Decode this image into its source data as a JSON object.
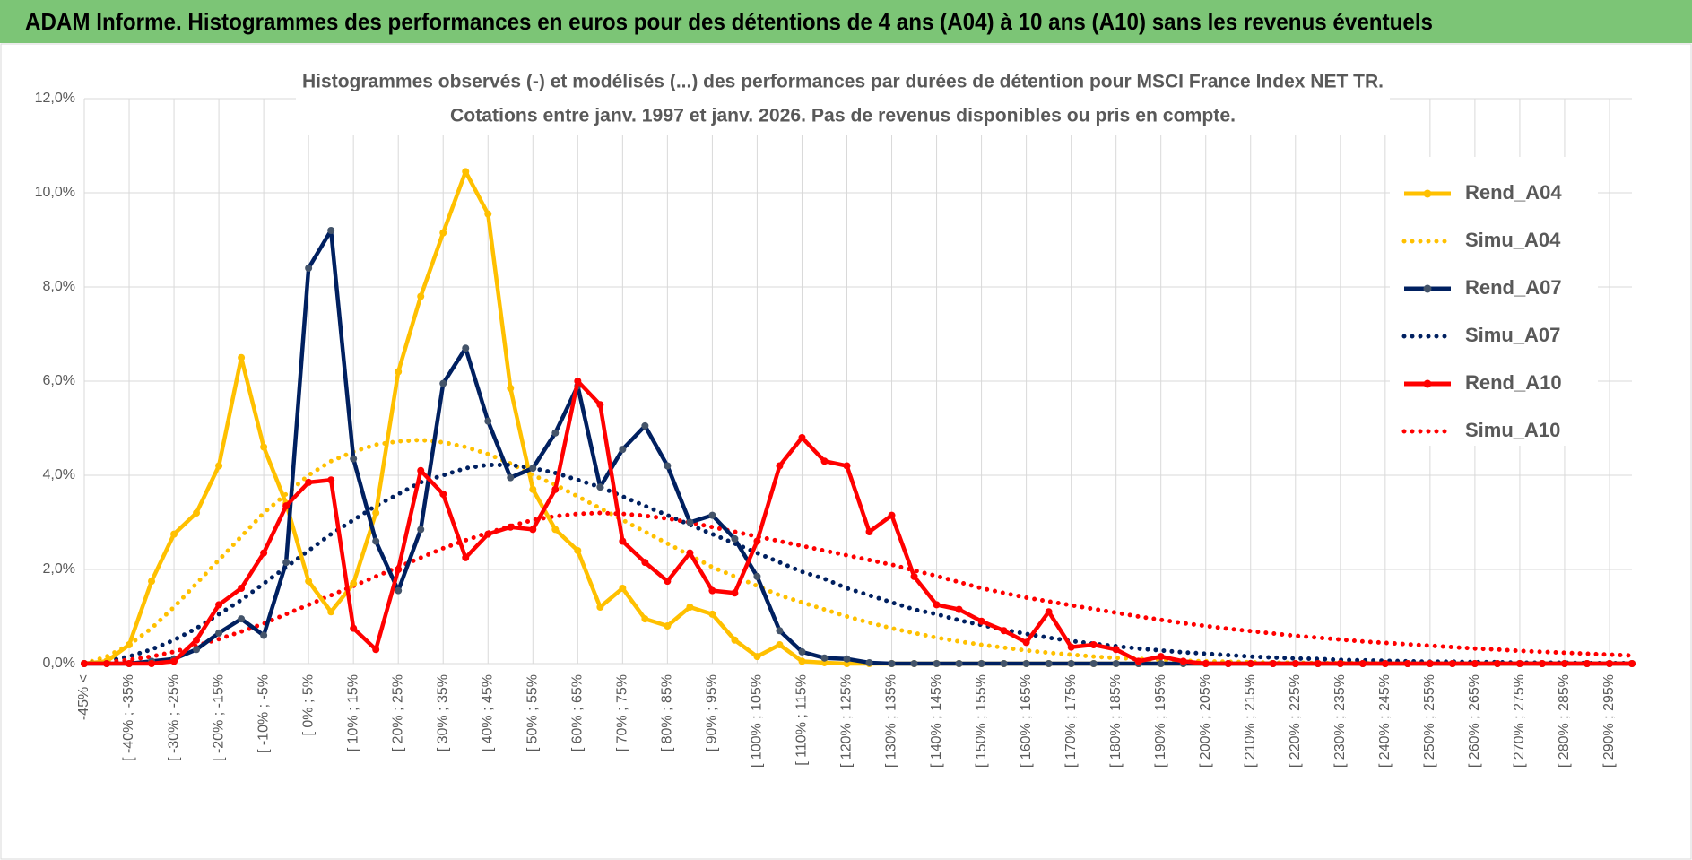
{
  "chart_data": {
    "type": "line",
    "title": "ADAM Informe. Histogrammes des performances en euros pour des détentions de 4 ans (A04) à 10 ans (A10) sans les revenus éventuels",
    "subtitle": [
      "Histogrammes observés (-) et modélisés (...) des performances par durées de détention pour MSCI France Index NET TR.",
      "Cotations entre janv. 1997 et janv. 2026. Pas de revenus disponibles ou pris en compte."
    ],
    "categories": [
      "-45% <",
      null,
      "[ -40% ; -35%",
      null,
      "[ -30% ; -25%",
      null,
      "[ -20% ; -15%",
      null,
      "[ -10% ; -5%",
      null,
      "[ 0% ; 5%",
      null,
      "[ 10% ; 15%",
      null,
      "[ 20% ; 25%",
      null,
      "[ 30% ; 35%",
      null,
      "[ 40% ; 45%",
      null,
      "[ 50% ; 55%",
      null,
      "[ 60% ; 65%",
      null,
      "[ 70% ; 75%",
      null,
      "[ 80% ; 85%",
      null,
      "[ 90% ; 95%",
      null,
      "[ 100% ; 105%",
      null,
      "[ 110% ; 115%",
      null,
      "[ 120% ; 125%",
      null,
      "[ 130% ; 135%",
      null,
      "[ 140% ; 145%",
      null,
      "[ 150% ; 155%",
      null,
      "[ 160% ; 165%",
      null,
      "[ 170% ; 175%",
      null,
      "[ 180% ; 185%",
      null,
      "[ 190% ; 195%",
      null,
      "[ 200% ; 205%",
      null,
      "[ 210% ; 215%",
      null,
      "[ 220% ; 225%",
      null,
      "[ 230% ; 235%",
      null,
      "[ 240% ; 245%",
      null,
      "[ 250% ; 255%",
      null,
      "[ 260% ; 265%",
      null,
      "[ 270% ; 275%",
      null,
      "[ 280% ; 285%",
      null,
      "[ 290% ; 295%",
      null
    ],
    "series": [
      {
        "name": "Rend_A04",
        "color": "#FFC000",
        "style": "solid",
        "markers": true,
        "values": [
          0,
          0.05,
          0.4,
          1.75,
          2.75,
          3.2,
          4.2,
          6.5,
          4.6,
          3.4,
          1.75,
          1.1,
          1.7,
          3.2,
          6.2,
          7.8,
          9.15,
          10.45,
          9.55,
          5.85,
          3.7,
          2.85,
          2.4,
          1.2,
          1.6,
          0.95,
          0.8,
          1.2,
          1.05,
          0.5,
          0.15,
          0.4,
          0.05,
          0.02,
          0,
          0,
          0,
          0,
          0,
          0,
          0,
          0,
          0,
          0,
          0,
          0,
          0,
          0,
          0,
          0,
          0,
          0,
          0,
          0,
          0,
          0,
          0,
          0,
          0,
          0,
          0,
          0,
          0,
          0,
          0,
          0,
          0,
          0,
          0,
          0
        ]
      },
      {
        "name": "Simu_A04",
        "color": "#FFC000",
        "style": "dotted",
        "markers": false,
        "values": [
          0,
          0.15,
          0.4,
          0.75,
          1.2,
          1.7,
          2.2,
          2.7,
          3.2,
          3.6,
          4.0,
          4.3,
          4.5,
          4.65,
          4.72,
          4.75,
          4.7,
          4.6,
          4.45,
          4.25,
          4.0,
          3.8,
          3.55,
          3.3,
          3.05,
          2.8,
          2.55,
          2.3,
          2.05,
          1.85,
          1.65,
          1.45,
          1.3,
          1.15,
          1.0,
          0.87,
          0.75,
          0.65,
          0.55,
          0.47,
          0.4,
          0.34,
          0.28,
          0.23,
          0.19,
          0.15,
          0.12,
          0.1,
          0.08,
          0.06,
          0.05,
          0.04,
          0.03,
          0.02,
          0.02,
          0.01,
          0.01,
          0.01,
          0,
          0,
          0,
          0,
          0,
          0,
          0,
          0,
          0,
          0,
          0,
          0
        ]
      },
      {
        "name": "Rend_A07",
        "color": "#002060",
        "style": "solid",
        "markers": true,
        "values": [
          0,
          0,
          0,
          0.05,
          0.1,
          0.3,
          0.65,
          0.95,
          0.6,
          2.15,
          8.4,
          9.2,
          4.35,
          2.6,
          1.55,
          2.85,
          5.95,
          6.7,
          5.15,
          3.95,
          4.15,
          4.9,
          5.9,
          3.75,
          4.55,
          5.05,
          4.2,
          3.0,
          3.15,
          2.65,
          1.85,
          0.7,
          0.25,
          0.12,
          0.1,
          0.02,
          0,
          0,
          0,
          0,
          0,
          0,
          0,
          0,
          0,
          0,
          0,
          0,
          0,
          0,
          0,
          0,
          0,
          0,
          0,
          0,
          0,
          0,
          0,
          0,
          0,
          0,
          0,
          0,
          0,
          0,
          0,
          0,
          0,
          0
        ]
      },
      {
        "name": "Simu_A07",
        "color": "#002060",
        "style": "dotted",
        "markers": false,
        "values": [
          0,
          0.05,
          0.15,
          0.3,
          0.5,
          0.75,
          1.05,
          1.35,
          1.7,
          2.05,
          2.4,
          2.75,
          3.05,
          3.35,
          3.6,
          3.85,
          4.0,
          4.15,
          4.22,
          4.22,
          4.15,
          4.05,
          3.9,
          3.75,
          3.55,
          3.35,
          3.15,
          2.95,
          2.75,
          2.55,
          2.35,
          2.15,
          1.95,
          1.8,
          1.6,
          1.45,
          1.3,
          1.15,
          1.05,
          0.92,
          0.82,
          0.72,
          0.63,
          0.55,
          0.48,
          0.42,
          0.37,
          0.32,
          0.28,
          0.24,
          0.21,
          0.18,
          0.15,
          0.13,
          0.11,
          0.1,
          0.08,
          0.07,
          0.06,
          0.05,
          0.04,
          0.04,
          0.03,
          0.03,
          0.02,
          0.02,
          0.02,
          0.01,
          0.01,
          0.01
        ]
      },
      {
        "name": "Rend_A10",
        "color": "#FF0000",
        "style": "solid",
        "markers": true,
        "values": [
          0,
          0,
          0,
          0,
          0.05,
          0.5,
          1.25,
          1.6,
          2.35,
          3.35,
          3.85,
          3.9,
          0.75,
          0.3,
          2.0,
          4.1,
          3.6,
          2.25,
          2.75,
          2.9,
          2.85,
          3.7,
          6.0,
          5.5,
          2.6,
          2.15,
          1.75,
          2.35,
          1.55,
          1.5,
          2.6,
          4.2,
          4.8,
          4.3,
          4.2,
          2.8,
          3.15,
          1.85,
          1.25,
          1.15,
          0.9,
          0.7,
          0.45,
          1.1,
          0.35,
          0.4,
          0.3,
          0.05,
          0.15,
          0.05,
          0,
          0,
          0,
          0,
          0,
          0,
          0,
          0,
          0,
          0,
          0,
          0,
          0,
          0,
          0,
          0,
          0,
          0,
          0,
          0
        ]
      },
      {
        "name": "Simu_A10",
        "color": "#FF0000",
        "style": "dotted",
        "markers": false,
        "values": [
          0,
          0.03,
          0.08,
          0.15,
          0.25,
          0.38,
          0.52,
          0.68,
          0.85,
          1.05,
          1.25,
          1.45,
          1.65,
          1.85,
          2.05,
          2.25,
          2.45,
          2.62,
          2.78,
          2.92,
          3.05,
          3.13,
          3.18,
          3.2,
          3.18,
          3.14,
          3.08,
          3.0,
          2.9,
          2.8,
          2.7,
          2.6,
          2.5,
          2.4,
          2.3,
          2.2,
          2.1,
          1.98,
          1.86,
          1.73,
          1.6,
          1.5,
          1.4,
          1.32,
          1.24,
          1.16,
          1.08,
          1.0,
          0.93,
          0.86,
          0.8,
          0.74,
          0.69,
          0.64,
          0.59,
          0.55,
          0.51,
          0.47,
          0.44,
          0.41,
          0.38,
          0.35,
          0.32,
          0.3,
          0.27,
          0.25,
          0.23,
          0.21,
          0.19,
          0.17
        ]
      }
    ],
    "ylim": [
      0,
      12
    ],
    "yticks": [
      {
        "value": 0,
        "label": "0,0%"
      },
      {
        "value": 2,
        "label": "2,0%"
      },
      {
        "value": 4,
        "label": "4,0%"
      },
      {
        "value": 6,
        "label": "6,0%"
      },
      {
        "value": 8,
        "label": "8,0%"
      },
      {
        "value": 10,
        "label": "10,0%"
      },
      {
        "value": 12,
        "label": "12,0%"
      }
    ],
    "grid": true,
    "legend": "right"
  }
}
